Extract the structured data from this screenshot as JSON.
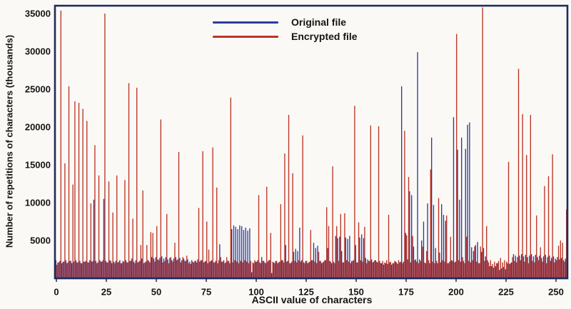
{
  "figure": {
    "y_axis_title": "Number of repetitions of characters (thousands)",
    "x_axis_title": "ASCII value of characters"
  },
  "chart_data": {
    "type": "bar",
    "title": "",
    "xlabel": "ASCII value of characters",
    "ylabel": "Number of repetitions of characters (thousands)",
    "xlim": [
      0,
      256
    ],
    "ylim": [
      0,
      36000
    ],
    "x_ticks": [
      0,
      25,
      50,
      75,
      100,
      125,
      150,
      175,
      200,
      225,
      250
    ],
    "y_ticks": [
      5000,
      10000,
      15000,
      20000,
      25000,
      30000,
      35000
    ],
    "grid": false,
    "legend_position": "top-center",
    "x_min": 0,
    "x_step": 1,
    "categories_note": "x = ASCII code 0..255 by array index",
    "frame_color": "#1e2b5c",
    "text_color": "#151515",
    "series": [
      {
        "name": "Original file",
        "color": "#2e3d98",
        "values": [
          2400,
          2100,
          2300,
          2000,
          2200,
          2400,
          2100,
          2300,
          2000,
          2200,
          2400,
          2100,
          2300,
          2000,
          2200,
          2300,
          2100,
          2400,
          2200,
          10400,
          2300,
          2100,
          2400,
          2200,
          10500,
          2300,
          2100,
          2400,
          2000,
          2200,
          2300,
          2100,
          2400,
          2000,
          2200,
          2400,
          2100,
          2300,
          2600,
          2200,
          2400,
          2100,
          2300,
          2600,
          2000,
          2200,
          2400,
          2100,
          2800,
          2600,
          2800,
          2500,
          2700,
          2900,
          2600,
          2800,
          2500,
          2700,
          2400,
          2600,
          2800,
          2500,
          2700,
          2400,
          2600,
          2300,
          2500,
          2200,
          2400,
          2100,
          2300,
          2500,
          2200,
          2400,
          2100,
          2300,
          2000,
          2200,
          2400,
          2100,
          2300,
          2000,
          4500,
          2200,
          2400,
          2100,
          2300,
          2000,
          6500,
          7000,
          6800,
          6500,
          7000,
          6900,
          6400,
          6700,
          6300,
          6600,
          800,
          2000,
          2200,
          2400,
          2100,
          2800,
          2300,
          2000,
          2200,
          2400,
          700,
          2100,
          2300,
          2000,
          2200,
          2400,
          2100,
          4400,
          2300,
          2000,
          2200,
          3500,
          3900,
          3600,
          6700,
          2400,
          2100,
          2300,
          2000,
          2200,
          2400,
          4700,
          4000,
          4300,
          2300,
          2000,
          2200,
          2400,
          4000,
          2300,
          2000,
          2200,
          5600,
          5300,
          5500,
          3600,
          2100,
          5400,
          5200,
          5600,
          2300,
          2400,
          4400,
          2100,
          5400,
          5800,
          5300,
          2700,
          2500,
          2300,
          2500,
          2200,
          2400,
          2100,
          2300,
          2000,
          1800,
          2000,
          1900,
          2100,
          1800,
          2000,
          2200,
          1900,
          2100,
          25400,
          2200,
          6000,
          2500,
          11500,
          11000,
          4200,
          2500,
          29900,
          2500,
          5000,
          7500,
          2000,
          9900,
          2000,
          18600,
          9700,
          4000,
          2000,
          3400,
          9800,
          8400,
          7600,
          2000,
          2200,
          2400,
          21300,
          2200,
          17000,
          10400,
          18600,
          2300,
          17100,
          20300,
          20600,
          4100,
          3600,
          4400,
          4800,
          2000,
          3500,
          4000,
          2900,
          2400,
          1600,
          1600,
          1400,
          1600,
          2000,
          1100,
          1300,
          1500,
          1200,
          2000,
          1900,
          2100,
          3200,
          3000,
          2800,
          3000,
          3200,
          2900,
          3100,
          2800,
          3000,
          3200,
          2900,
          3100,
          2800,
          3000,
          2700,
          2900,
          3100,
          2800,
          3000,
          2700,
          2900,
          2600,
          2800,
          2500,
          2700,
          2400,
          2600
        ]
      },
      {
        "name": "Encrypted file",
        "color": "#bc3425",
        "values": [
          1800,
          2100,
          35400,
          2200,
          15200,
          2000,
          25400,
          2300,
          12400,
          23400,
          2100,
          23200,
          2000,
          22400,
          2200,
          20800,
          2100,
          9900,
          2300,
          17600,
          2000,
          13600,
          2200,
          2400,
          35000,
          2100,
          12800,
          2300,
          8700,
          2000,
          13600,
          2200,
          2000,
          2300,
          13000,
          2100,
          25800,
          2300,
          7900,
          2000,
          25200,
          2200,
          4400,
          11600,
          2100,
          4400,
          2300,
          6100,
          6000,
          2200,
          6900,
          2400,
          21000,
          2100,
          2300,
          8500,
          2000,
          2800,
          2200,
          4700,
          2400,
          16700,
          2100,
          2800,
          2300,
          3000,
          2000,
          1900,
          2200,
          2300,
          2100,
          9300,
          2400,
          16800,
          2200,
          7500,
          3800,
          2300,
          17300,
          2100,
          12000,
          2400,
          2800,
          2200,
          2000,
          2800,
          2300,
          23900,
          2100,
          2400,
          2200,
          2000,
          2300,
          2100,
          2400,
          2200,
          2000,
          2300,
          2100,
          2400,
          2200,
          11000,
          2000,
          2300,
          2100,
          12100,
          2400,
          6000,
          2200,
          2000,
          2300,
          2100,
          9800,
          2400,
          16500,
          2200,
          21600,
          2000,
          13900,
          2300,
          2100,
          2400,
          2200,
          18900,
          2000,
          2300,
          2100,
          6400,
          2400,
          2200,
          2000,
          3500,
          2300,
          2100,
          2400,
          9400,
          6900,
          2200,
          14800,
          2000,
          6900,
          2300,
          8500,
          2100,
          8600,
          2400,
          2200,
          2000,
          2300,
          22800,
          2100,
          7400,
          2400,
          2200,
          6800,
          2000,
          2300,
          20200,
          2100,
          2400,
          2200,
          20100,
          2000,
          2300,
          2100,
          2400,
          8400,
          2200,
          2000,
          2300,
          2100,
          2400,
          2200,
          2000,
          19500,
          5700,
          13400,
          2100,
          5600,
          2400,
          2200,
          2000,
          2300,
          4200,
          2100,
          3600,
          2400,
          14400,
          2200,
          2000,
          2300,
          10600,
          2100,
          2400,
          2200,
          8300,
          2000,
          5500,
          2300,
          2100,
          32300,
          2400,
          2200,
          2800,
          2000,
          5500,
          2300,
          2100,
          2400,
          4200,
          2200,
          2000,
          4200,
          35800,
          2300,
          6900,
          2100,
          2400,
          1900,
          2200,
          2000,
          2300,
          2700,
          2100,
          2400,
          2200,
          15400,
          2000,
          2800,
          2300,
          2100,
          27700,
          2400,
          21700,
          2200,
          16300,
          2000,
          21600,
          2300,
          2100,
          8300,
          2400,
          4100,
          2200,
          12200,
          2000,
          13500,
          2300,
          16400,
          2100,
          2400,
          4300,
          5000,
          4700,
          2200,
          9100
        ]
      }
    ]
  }
}
